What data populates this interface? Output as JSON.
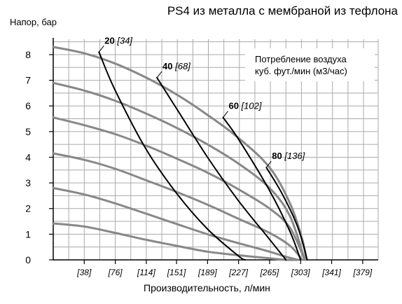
{
  "chart_data": {
    "type": "line",
    "title": "PS4 из металла с мембраной из тефлона",
    "ylabel": "Напор, бар",
    "xlabel": "Производительность, л/мин",
    "legend_lines": [
      "Потребление воздуха",
      "куб. фут./мин (м3/час)"
    ],
    "ylim": [
      0,
      8.6
    ],
    "xlim": [
      0,
      398
    ],
    "y_ticks": [
      0,
      1,
      2,
      3,
      4,
      5,
      6,
      7,
      8
    ],
    "x_ticks": [
      38,
      76,
      114,
      151,
      189,
      227,
      265,
      303,
      341,
      379
    ],
    "x_tick_labels": [
      "[38]",
      "[76]",
      "[114]",
      "[151]",
      "[189]",
      "[227]",
      "[265]",
      "[303]",
      "[341]",
      "[379]"
    ],
    "grid": true,
    "pressure_series": [
      {
        "x": [
          0,
          38,
          76,
          114,
          151,
          189,
          227,
          265,
          285,
          294,
          300
        ],
        "y": [
          1.42,
          1.3,
          1.05,
          0.78,
          0.55,
          0.32,
          0.18,
          0.06,
          0.0,
          0.0,
          0.0
        ],
        "values_are_estimates": true
      },
      {
        "x": [
          0,
          38,
          76,
          114,
          151,
          189,
          227,
          265,
          285,
          300
        ],
        "y": [
          2.8,
          2.55,
          2.2,
          1.8,
          1.4,
          1.0,
          0.65,
          0.32,
          0.12,
          0.0
        ]
      },
      {
        "x": [
          0,
          38,
          76,
          114,
          151,
          189,
          227,
          265,
          290,
          305
        ],
        "y": [
          4.15,
          3.9,
          3.55,
          3.1,
          2.65,
          2.15,
          1.6,
          1.05,
          0.55,
          0.0
        ]
      },
      {
        "x": [
          0,
          38,
          76,
          114,
          151,
          189,
          227,
          265,
          290,
          308
        ],
        "y": [
          5.55,
          5.25,
          4.9,
          4.45,
          3.95,
          3.4,
          2.75,
          2.0,
          1.25,
          0.0
        ]
      },
      {
        "x": [
          0,
          38,
          76,
          114,
          151,
          189,
          227,
          265,
          290,
          308
        ],
        "y": [
          6.9,
          6.6,
          6.2,
          5.7,
          5.15,
          4.5,
          3.75,
          2.8,
          1.7,
          0.0
        ]
      },
      {
        "x": [
          0,
          38,
          76,
          114,
          151,
          189,
          227,
          265,
          290,
          305,
          310
        ],
        "y": [
          8.3,
          8.05,
          7.65,
          7.1,
          6.45,
          5.65,
          4.75,
          3.6,
          2.2,
          0.8,
          0.0
        ]
      }
    ],
    "air_series": [
      {
        "label": "20",
        "label_alt": "[34]",
        "x": [
          56,
          76,
          114,
          151,
          189,
          227,
          235
        ],
        "y": [
          8.1,
          6.6,
          4.3,
          2.6,
          1.2,
          0.15,
          0.0
        ]
      },
      {
        "label": "40",
        "label_alt": "[68]",
        "x": [
          127,
          151,
          189,
          227,
          265,
          285
        ],
        "y": [
          7.1,
          5.9,
          4.0,
          2.3,
          0.8,
          0.0
        ]
      },
      {
        "label": "60",
        "label_alt": "[102]",
        "x": [
          208,
          227,
          265,
          290,
          303
        ],
        "y": [
          5.55,
          4.7,
          2.7,
          1.1,
          0.0
        ]
      },
      {
        "label": "80",
        "label_alt": "[136]",
        "x": [
          261,
          280,
          298,
          307,
          311
        ],
        "y": [
          3.6,
          2.6,
          1.4,
          0.5,
          0.0
        ]
      }
    ],
    "colors": {
      "pressure_curves": "#888888",
      "air_curves": "#000000",
      "grid": "#aaaaaa",
      "background": "#ffffff"
    }
  }
}
